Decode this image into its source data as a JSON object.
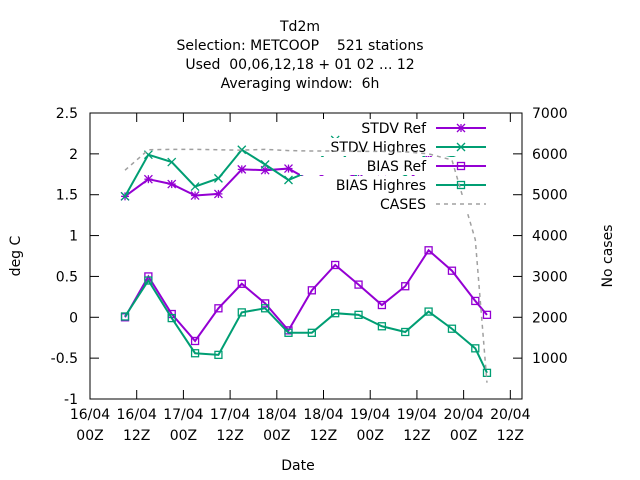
{
  "chart_data": {
    "type": "line",
    "title": [
      "Td2m",
      "Selection: METCOOP    521 stations",
      "Used  00,06,12,18 + 01 02 ... 12",
      "Averaging window:  6h"
    ],
    "xlabel": "Date",
    "ylabel": "deg C",
    "y2label": "No cases",
    "x": [
      9,
      15,
      21,
      27,
      33,
      39,
      45,
      51,
      57,
      63,
      69,
      75,
      81,
      87,
      93,
      99,
      102
    ],
    "xlim": [
      0,
      111
    ],
    "xticks": [
      {
        "value": 0,
        "label": [
          "16/04",
          "00Z"
        ]
      },
      {
        "value": 12,
        "label": [
          "16/04",
          "12Z"
        ]
      },
      {
        "value": 24,
        "label": [
          "17/04",
          "00Z"
        ]
      },
      {
        "value": 36,
        "label": [
          "17/04",
          "12Z"
        ]
      },
      {
        "value": 48,
        "label": [
          "18/04",
          "00Z"
        ]
      },
      {
        "value": 60,
        "label": [
          "18/04",
          "12Z"
        ]
      },
      {
        "value": 72,
        "label": [
          "19/04",
          "00Z"
        ]
      },
      {
        "value": 84,
        "label": [
          "19/04",
          "12Z"
        ]
      },
      {
        "value": 96,
        "label": [
          "20/04",
          "00Z"
        ]
      },
      {
        "value": 108,
        "label": [
          "20/04",
          "12Z"
        ]
      }
    ],
    "ylim": [
      -1,
      2.5
    ],
    "yticks": [
      2.5,
      2,
      1.5,
      1,
      0.5,
      0,
      -0.5,
      -1
    ],
    "y2lim": [
      0,
      7000
    ],
    "y2ticks": [
      1000,
      2000,
      3000,
      4000,
      5000,
      6000,
      7000
    ],
    "series": [
      {
        "name": "STDV Ref",
        "color": "#9400d3",
        "marker": "star",
        "values": [
          1.48,
          1.69,
          1.63,
          1.49,
          1.51,
          1.81,
          1.8,
          1.82,
          1.66,
          1.84,
          1.7,
          1.68,
          1.63,
          1.94,
          1.87,
          1.8,
          1.9
        ]
      },
      {
        "name": "STDV Highres",
        "color": "#009e73",
        "marker": "x",
        "values": [
          1.48,
          1.99,
          1.9,
          1.6,
          1.7,
          2.05,
          1.87,
          1.68,
          1.8,
          2.17,
          1.68,
          1.62,
          1.73,
          2.03,
          1.97,
          1.85,
          1.85
        ]
      },
      {
        "name": "BIAS Ref",
        "color": "#9400d3",
        "marker": "square",
        "values": [
          0.0,
          0.5,
          0.04,
          -0.29,
          0.11,
          0.41,
          0.17,
          -0.16,
          0.33,
          0.64,
          0.4,
          0.15,
          0.38,
          0.82,
          0.57,
          0.2,
          0.03
        ]
      },
      {
        "name": "BIAS Highres",
        "color": "#009e73",
        "marker": "square",
        "values": [
          0.01,
          0.45,
          -0.01,
          -0.44,
          -0.46,
          0.06,
          0.11,
          -0.19,
          -0.19,
          0.05,
          0.03,
          -0.11,
          -0.18,
          0.07,
          -0.14,
          -0.38,
          -0.68
        ]
      },
      {
        "name": "CASES",
        "color": "#a0a0a0",
        "dashed": true,
        "axis": "y2",
        "values": [
          5600,
          6100,
          6110,
          6110,
          6100,
          6090,
          6110,
          6080,
          6070,
          6070,
          6060,
          6060,
          6050,
          6000,
          5850,
          3900,
          400
        ]
      }
    ]
  }
}
